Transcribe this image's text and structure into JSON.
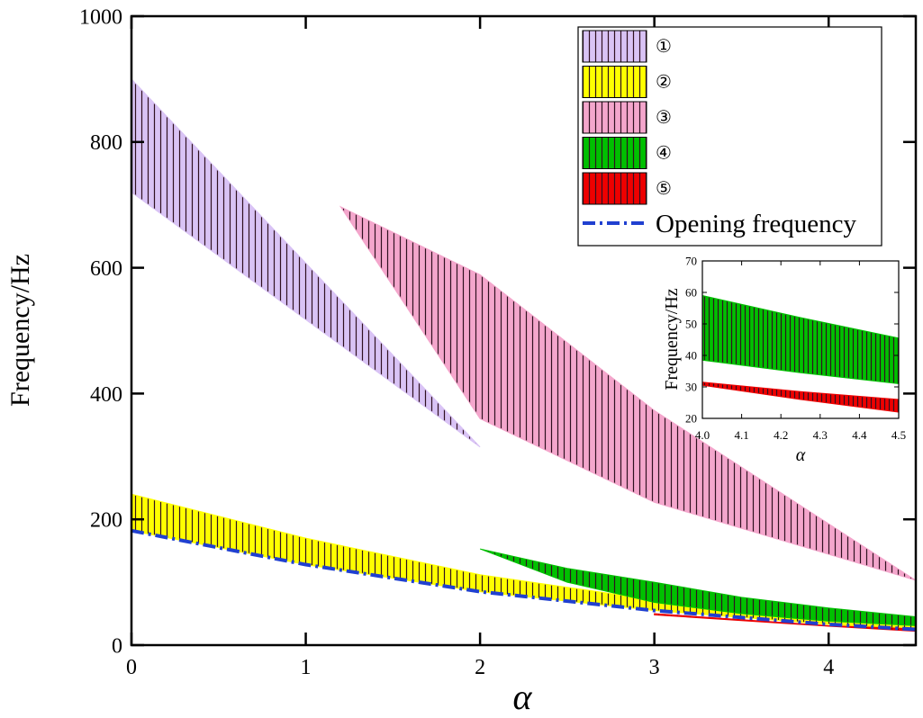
{
  "chart_data": {
    "type": "area",
    "title": "",
    "xlabel": "α",
    "ylabel": "Frequency/Hz",
    "xlim": [
      0,
      4.5
    ],
    "ylim": [
      0,
      1000
    ],
    "xticks": [
      "0",
      "1",
      "2",
      "3",
      "4"
    ],
    "yticks": [
      "0",
      "200",
      "400",
      "600",
      "800",
      "1000"
    ],
    "legend_position": "top-right",
    "bands": [
      {
        "name": "①",
        "color": "#d9c3f5",
        "x": [
          0,
          2
        ],
        "upper": [
          900,
          315
        ],
        "lower": [
          720,
          315
        ]
      },
      {
        "name": "②",
        "color": "#ffff00",
        "x": [
          0,
          1,
          2,
          3,
          4,
          4.5
        ],
        "upper": [
          240,
          170,
          112,
          72,
          45,
          38
        ],
        "lower": [
          182,
          128,
          85,
          55,
          33,
          25
        ]
      },
      {
        "name": "③",
        "color": "#f4a6cc",
        "x": [
          1.2,
          2,
          3,
          4.5
        ],
        "upper": [
          697,
          589,
          373,
          103
        ],
        "lower": [
          697,
          360,
          227,
          103
        ]
      },
      {
        "name": "④",
        "color": "#00c000",
        "x": [
          2,
          2.5,
          3,
          3.5,
          4,
          4.5
        ],
        "upper": [
          153,
          122,
          100,
          76,
          59,
          45
        ],
        "lower": [
          153,
          100,
          68,
          50,
          38,
          31
        ]
      },
      {
        "name": "⑤",
        "color": "#ee0000",
        "x": [
          3,
          4,
          4.5
        ],
        "upper": [
          50,
          31,
          26
        ],
        "lower": [
          48,
          30,
          22
        ]
      }
    ],
    "line": {
      "name": "Opening frequency",
      "color": "#2040d0",
      "x": [
        0,
        1,
        2,
        3,
        4,
        4.5
      ],
      "y": [
        182,
        128,
        85,
        55,
        33,
        25
      ]
    },
    "inset": {
      "xlabel": "α",
      "ylabel": "Frequency/Hz",
      "xlim": [
        4.0,
        4.5
      ],
      "ylim": [
        20,
        70
      ],
      "xticks": [
        "4.0",
        "4.1",
        "4.2",
        "4.3",
        "4.4",
        "4.5"
      ],
      "yticks": [
        "20",
        "30",
        "40",
        "50",
        "60",
        "70"
      ],
      "bands": [
        {
          "name": "④",
          "color": "#00c000",
          "x": [
            4.0,
            4.25,
            4.5
          ],
          "upper": [
            59,
            52,
            45.5
          ],
          "lower": [
            38.5,
            34.5,
            31
          ]
        },
        {
          "name": "⑤",
          "color": "#ee0000",
          "x": [
            4.0,
            4.25,
            4.5
          ],
          "upper": [
            31.5,
            28.5,
            26
          ],
          "lower": [
            30.5,
            26,
            22
          ]
        }
      ]
    }
  }
}
